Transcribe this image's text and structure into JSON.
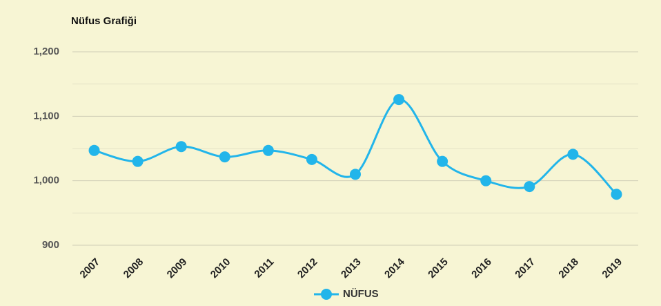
{
  "chart_data": {
    "type": "line",
    "title": "Nüfus Grafiği",
    "categories": [
      "2007",
      "2008",
      "2009",
      "2010",
      "2011",
      "2012",
      "2013",
      "2014",
      "2015",
      "2016",
      "2017",
      "2018",
      "2019"
    ],
    "series": [
      {
        "name": "NÜFUS",
        "color": "#22b5ea",
        "values": [
          1047,
          1030,
          1053,
          1037,
          1047,
          1033,
          1010,
          1126,
          1030,
          1000,
          991,
          1041,
          979
        ]
      }
    ],
    "ylim": [
      900,
      1200
    ],
    "yticks": [
      900,
      {
        "value": 1000,
        "label": "1,000"
      },
      {
        "value": 1100,
        "label": "1,100"
      },
      {
        "value": 1200,
        "label": "1,200"
      }
    ],
    "minor_yticks": [
      950,
      1050,
      1150
    ],
    "grid": true,
    "smooth": true,
    "legend": "bottom"
  }
}
